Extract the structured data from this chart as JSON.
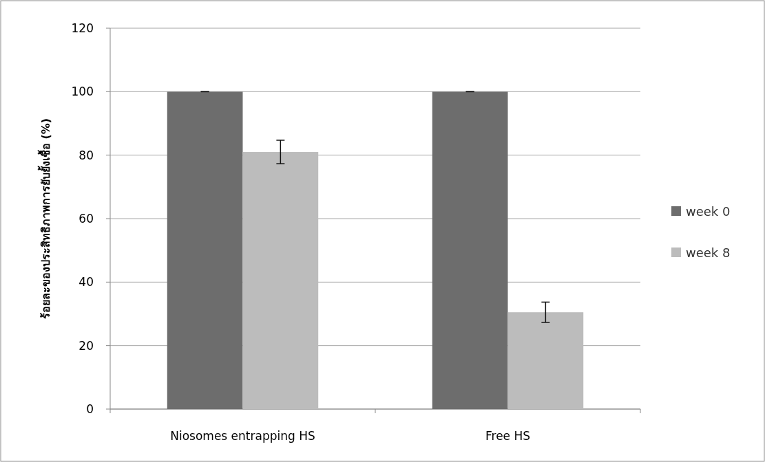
{
  "chart_data": {
    "type": "bar",
    "ylabel": "ร้อยละของประสิทธิภาพการยับยั้งเชื้อ (%)",
    "categories": [
      "Niosomes entrapping HS",
      "Free HS"
    ],
    "series": [
      {
        "name": "week 0",
        "color": "#6d6d6d",
        "values": [
          100,
          100
        ],
        "errors": [
          0,
          0
        ]
      },
      {
        "name": "week 8",
        "color": "#bcbcbc",
        "values": [
          81,
          30.5
        ],
        "errors": [
          3.7,
          3.2
        ]
      }
    ],
    "ylim": [
      0,
      120
    ],
    "yticks": [
      0,
      20,
      40,
      60,
      80,
      100,
      120
    ],
    "grid": "y",
    "legend": "right"
  }
}
